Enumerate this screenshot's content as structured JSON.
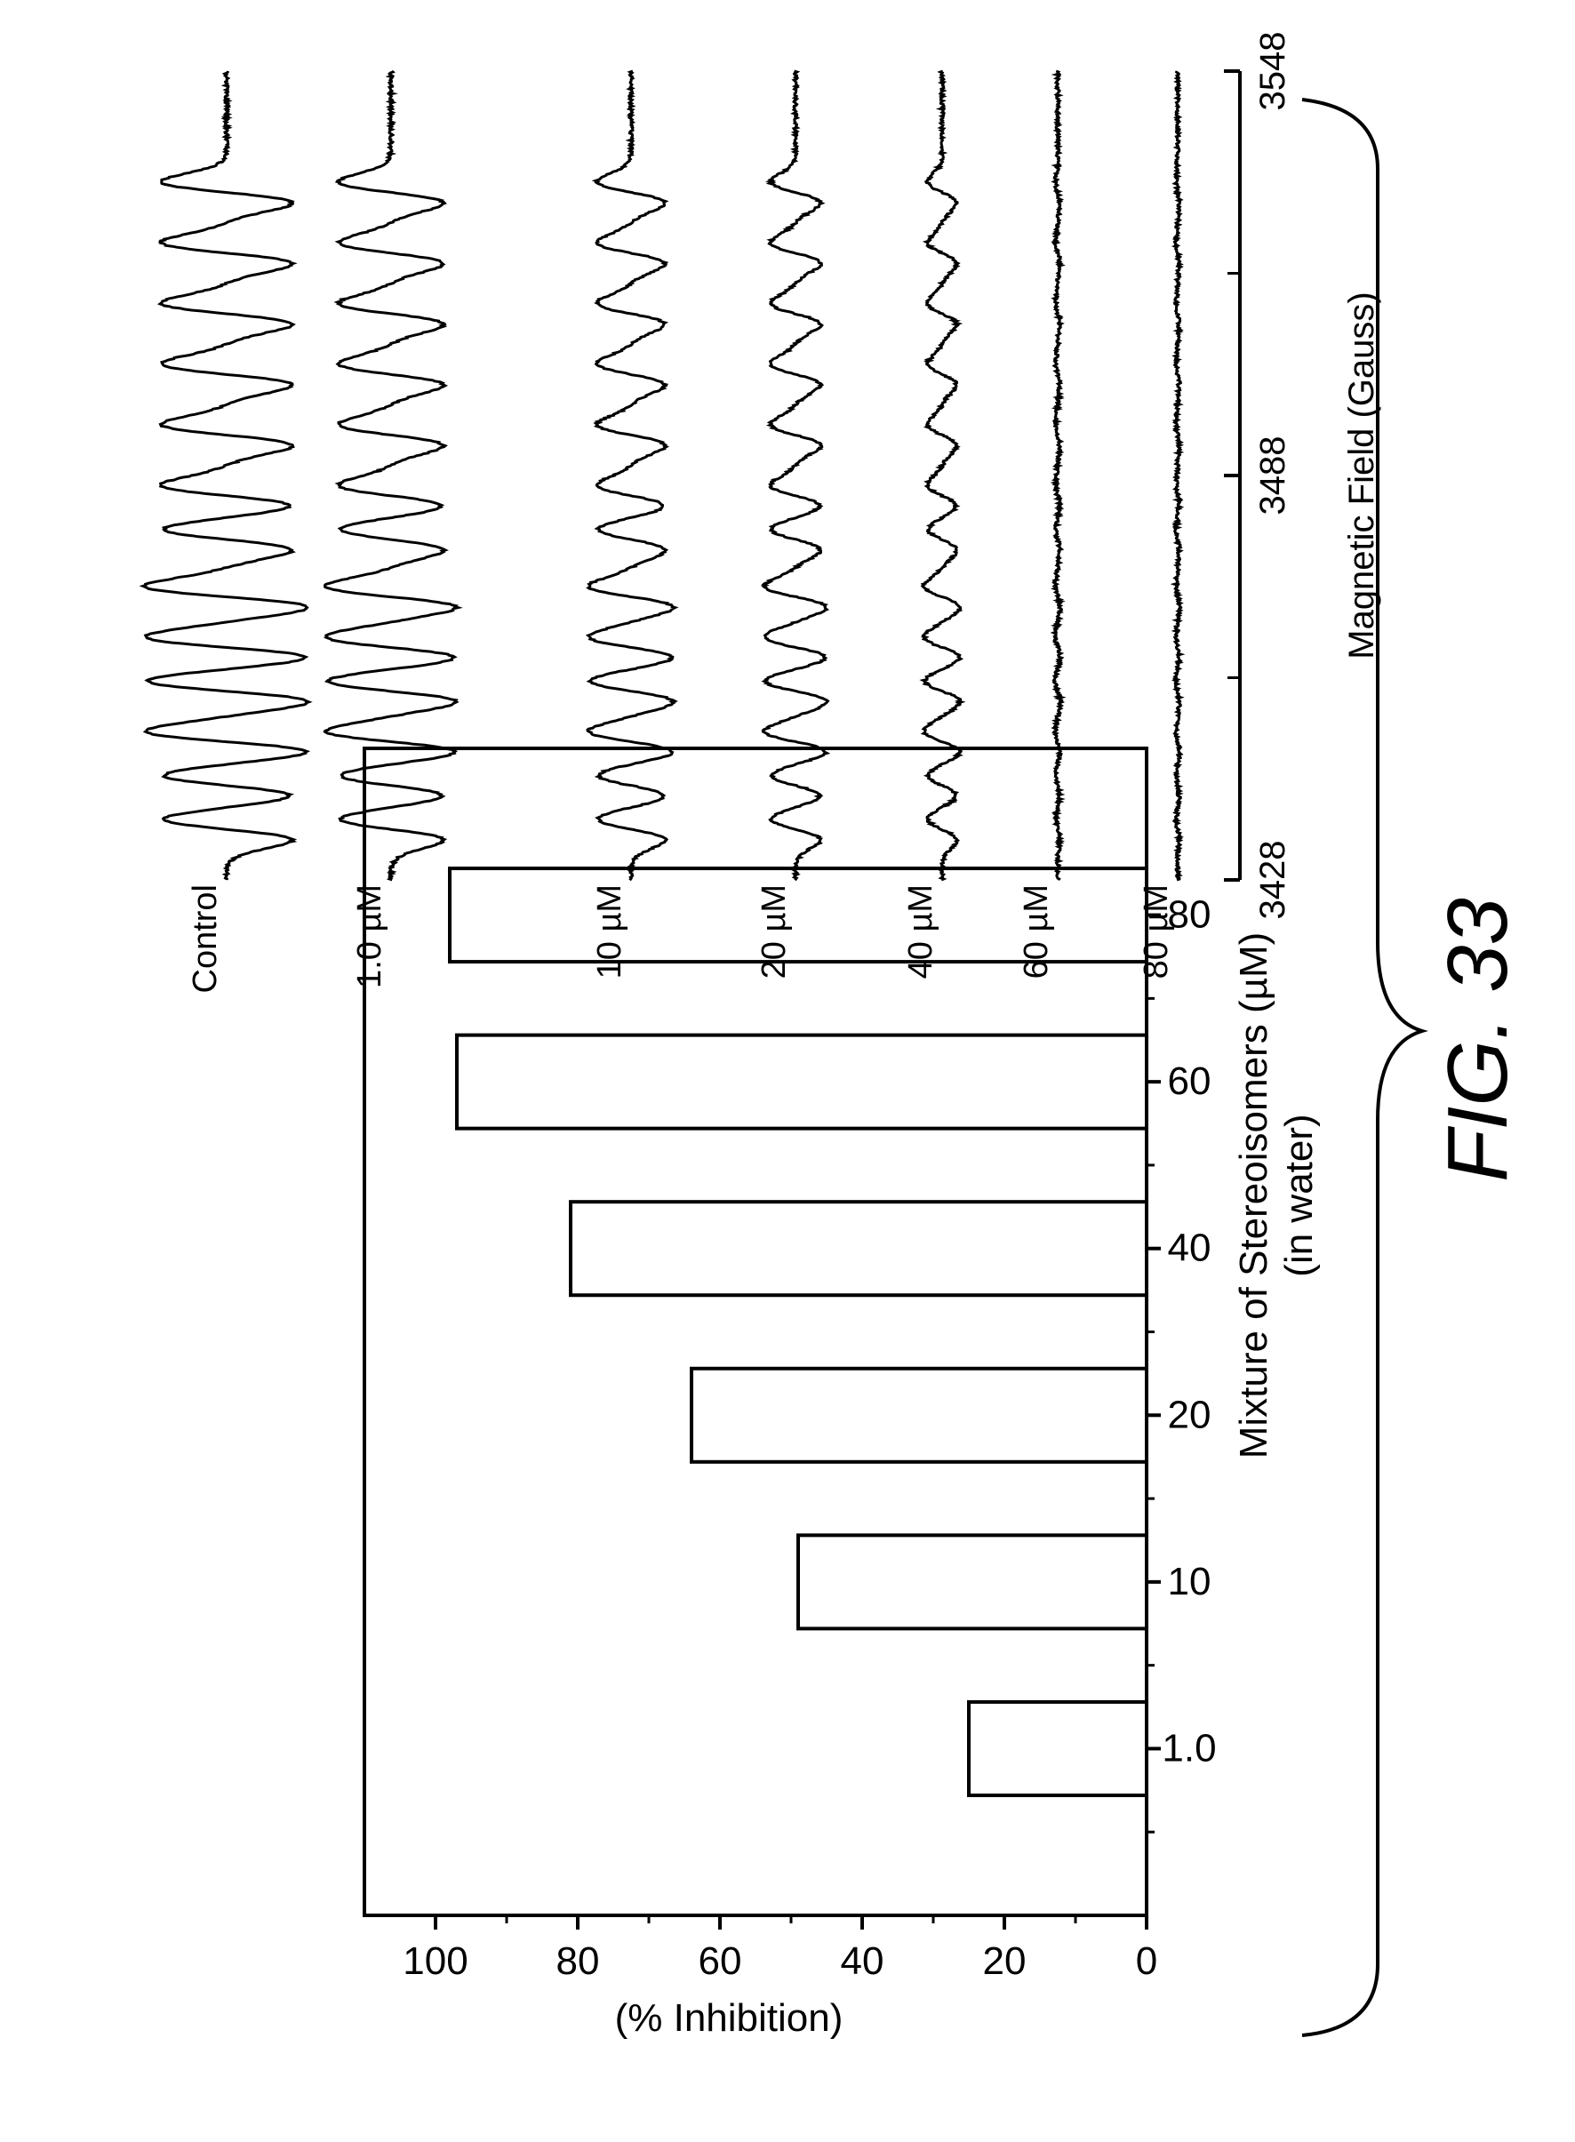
{
  "figure_label": "FIG. 33",
  "chart_data": [
    {
      "type": "bar",
      "categories": [
        "1.0",
        "10",
        "20",
        "40",
        "60",
        "80"
      ],
      "values": [
        25,
        49,
        64,
        81,
        97,
        98
      ],
      "xlabel": "Mixture of Stereoisomers (µM)",
      "xlabel_line2": "(in water)",
      "ylabel": "(% Inhibition)",
      "ylim": [
        0,
        110
      ],
      "yticks": [
        0,
        20,
        40,
        60,
        80,
        100
      ],
      "bar_fill": "#ffffff",
      "bar_stroke": "#000000",
      "grid": false,
      "orientation_in_figure": "rotated 90° counter-clockwise"
    },
    {
      "type": "line",
      "xlabel": "Magnetic Field (Gauss)",
      "xlim": [
        3428,
        3548
      ],
      "xticks": [
        3428,
        3488,
        3548
      ],
      "minor_xticks": [
        3458,
        3518
      ],
      "line_positions_gauss": [
        3435.5,
        3442,
        3448.5,
        3456,
        3462.5,
        3470,
        3478.5,
        3485,
        3494,
        3503,
        3512,
        3521,
        3530
      ],
      "series": [
        {
          "name": "Control",
          "relative_amplitude": 1.0
        },
        {
          "name": "1.0 µM",
          "relative_amplitude": 0.8
        },
        {
          "name": "10 µM",
          "relative_amplitude": 0.52
        },
        {
          "name": "20 µM",
          "relative_amplitude": 0.38
        },
        {
          "name": "40 µM",
          "relative_amplitude": 0.22
        },
        {
          "name": "60 µM",
          "relative_amplitude": 0.03
        },
        {
          "name": "80 µM",
          "relative_amplitude": 0.02
        }
      ],
      "grid": false,
      "orientation_in_figure": "rotated 90° counter-clockwise"
    }
  ]
}
